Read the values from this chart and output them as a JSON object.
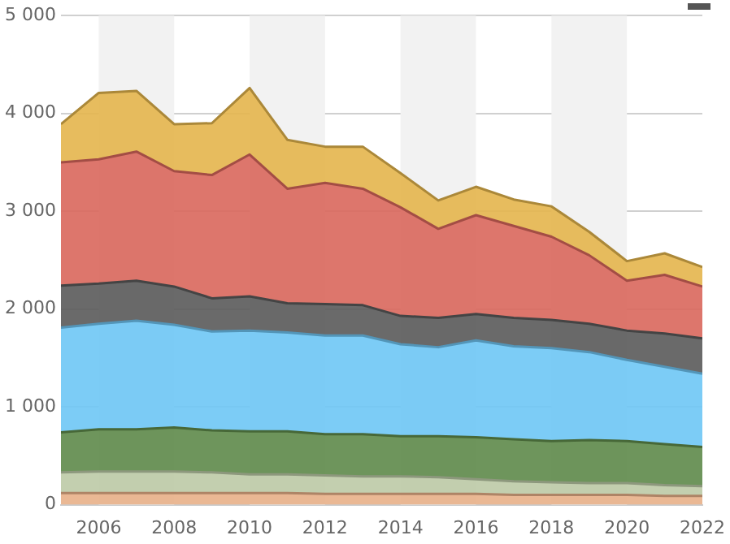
{
  "chart_data": {
    "type": "area",
    "stacked": true,
    "grid": "y",
    "legend": false,
    "x": [
      2005,
      2006,
      2007,
      2008,
      2009,
      2010,
      2011,
      2012,
      2013,
      2014,
      2015,
      2016,
      2017,
      2018,
      2019,
      2020,
      2021,
      2022
    ],
    "xlim": [
      2005,
      2022
    ],
    "xticks": [
      2006,
      2008,
      2010,
      2012,
      2014,
      2016,
      2018,
      2020,
      2022
    ],
    "ylim": [
      0,
      5000
    ],
    "yticks": [
      {
        "value": 0,
        "label": "0"
      },
      {
        "value": 1000,
        "label": "1 000"
      },
      {
        "value": 2000,
        "label": "2 000"
      },
      {
        "value": 3000,
        "label": "3 000"
      },
      {
        "value": 4000,
        "label": "4 000"
      },
      {
        "value": 5000,
        "label": "5 000"
      }
    ],
    "bands": [
      {
        "axis": "x",
        "from": 2006,
        "to": 2008,
        "color": "#f2f2f2"
      },
      {
        "axis": "x",
        "from": 2010,
        "to": 2012,
        "color": "#f2f2f2"
      },
      {
        "axis": "x",
        "from": 2014,
        "to": 2016,
        "color": "#f2f2f2"
      },
      {
        "axis": "x",
        "from": 2018,
        "to": 2020,
        "color": "#f2f2f2"
      }
    ],
    "series": [
      {
        "color": "#e8b088",
        "values": [
          120,
          120,
          120,
          120,
          120,
          120,
          120,
          110,
          110,
          110,
          110,
          110,
          100,
          100,
          100,
          100,
          90,
          90
        ]
      },
      {
        "color": "#bccaa6",
        "values": [
          210,
          220,
          220,
          220,
          210,
          190,
          190,
          190,
          180,
          180,
          170,
          150,
          140,
          130,
          120,
          120,
          110,
          100
        ]
      },
      {
        "color": "#5e8a4a",
        "values": [
          410,
          430,
          430,
          450,
          430,
          440,
          440,
          420,
          430,
          410,
          420,
          430,
          430,
          420,
          440,
          430,
          420,
          400
        ]
      },
      {
        "color": "#6ec6f5",
        "values": [
          1070,
          1080,
          1110,
          1050,
          1010,
          1030,
          1010,
          1010,
          1010,
          940,
          910,
          990,
          950,
          950,
          900,
          830,
          790,
          750
        ]
      },
      {
        "color": "#5a5a5a",
        "values": [
          430,
          410,
          410,
          390,
          340,
          350,
          300,
          320,
          310,
          290,
          300,
          270,
          290,
          290,
          290,
          300,
          340,
          360
        ]
      },
      {
        "color": "#d9675c",
        "values": [
          1260,
          1270,
          1320,
          1180,
          1260,
          1450,
          1170,
          1240,
          1190,
          1110,
          910,
          1010,
          940,
          850,
          700,
          510,
          600,
          530
        ]
      },
      {
        "color": "#e4b54c",
        "values": [
          390,
          680,
          620,
          480,
          530,
          680,
          500,
          370,
          430,
          350,
          290,
          290,
          270,
          310,
          240,
          200,
          220,
          200
        ]
      }
    ]
  }
}
